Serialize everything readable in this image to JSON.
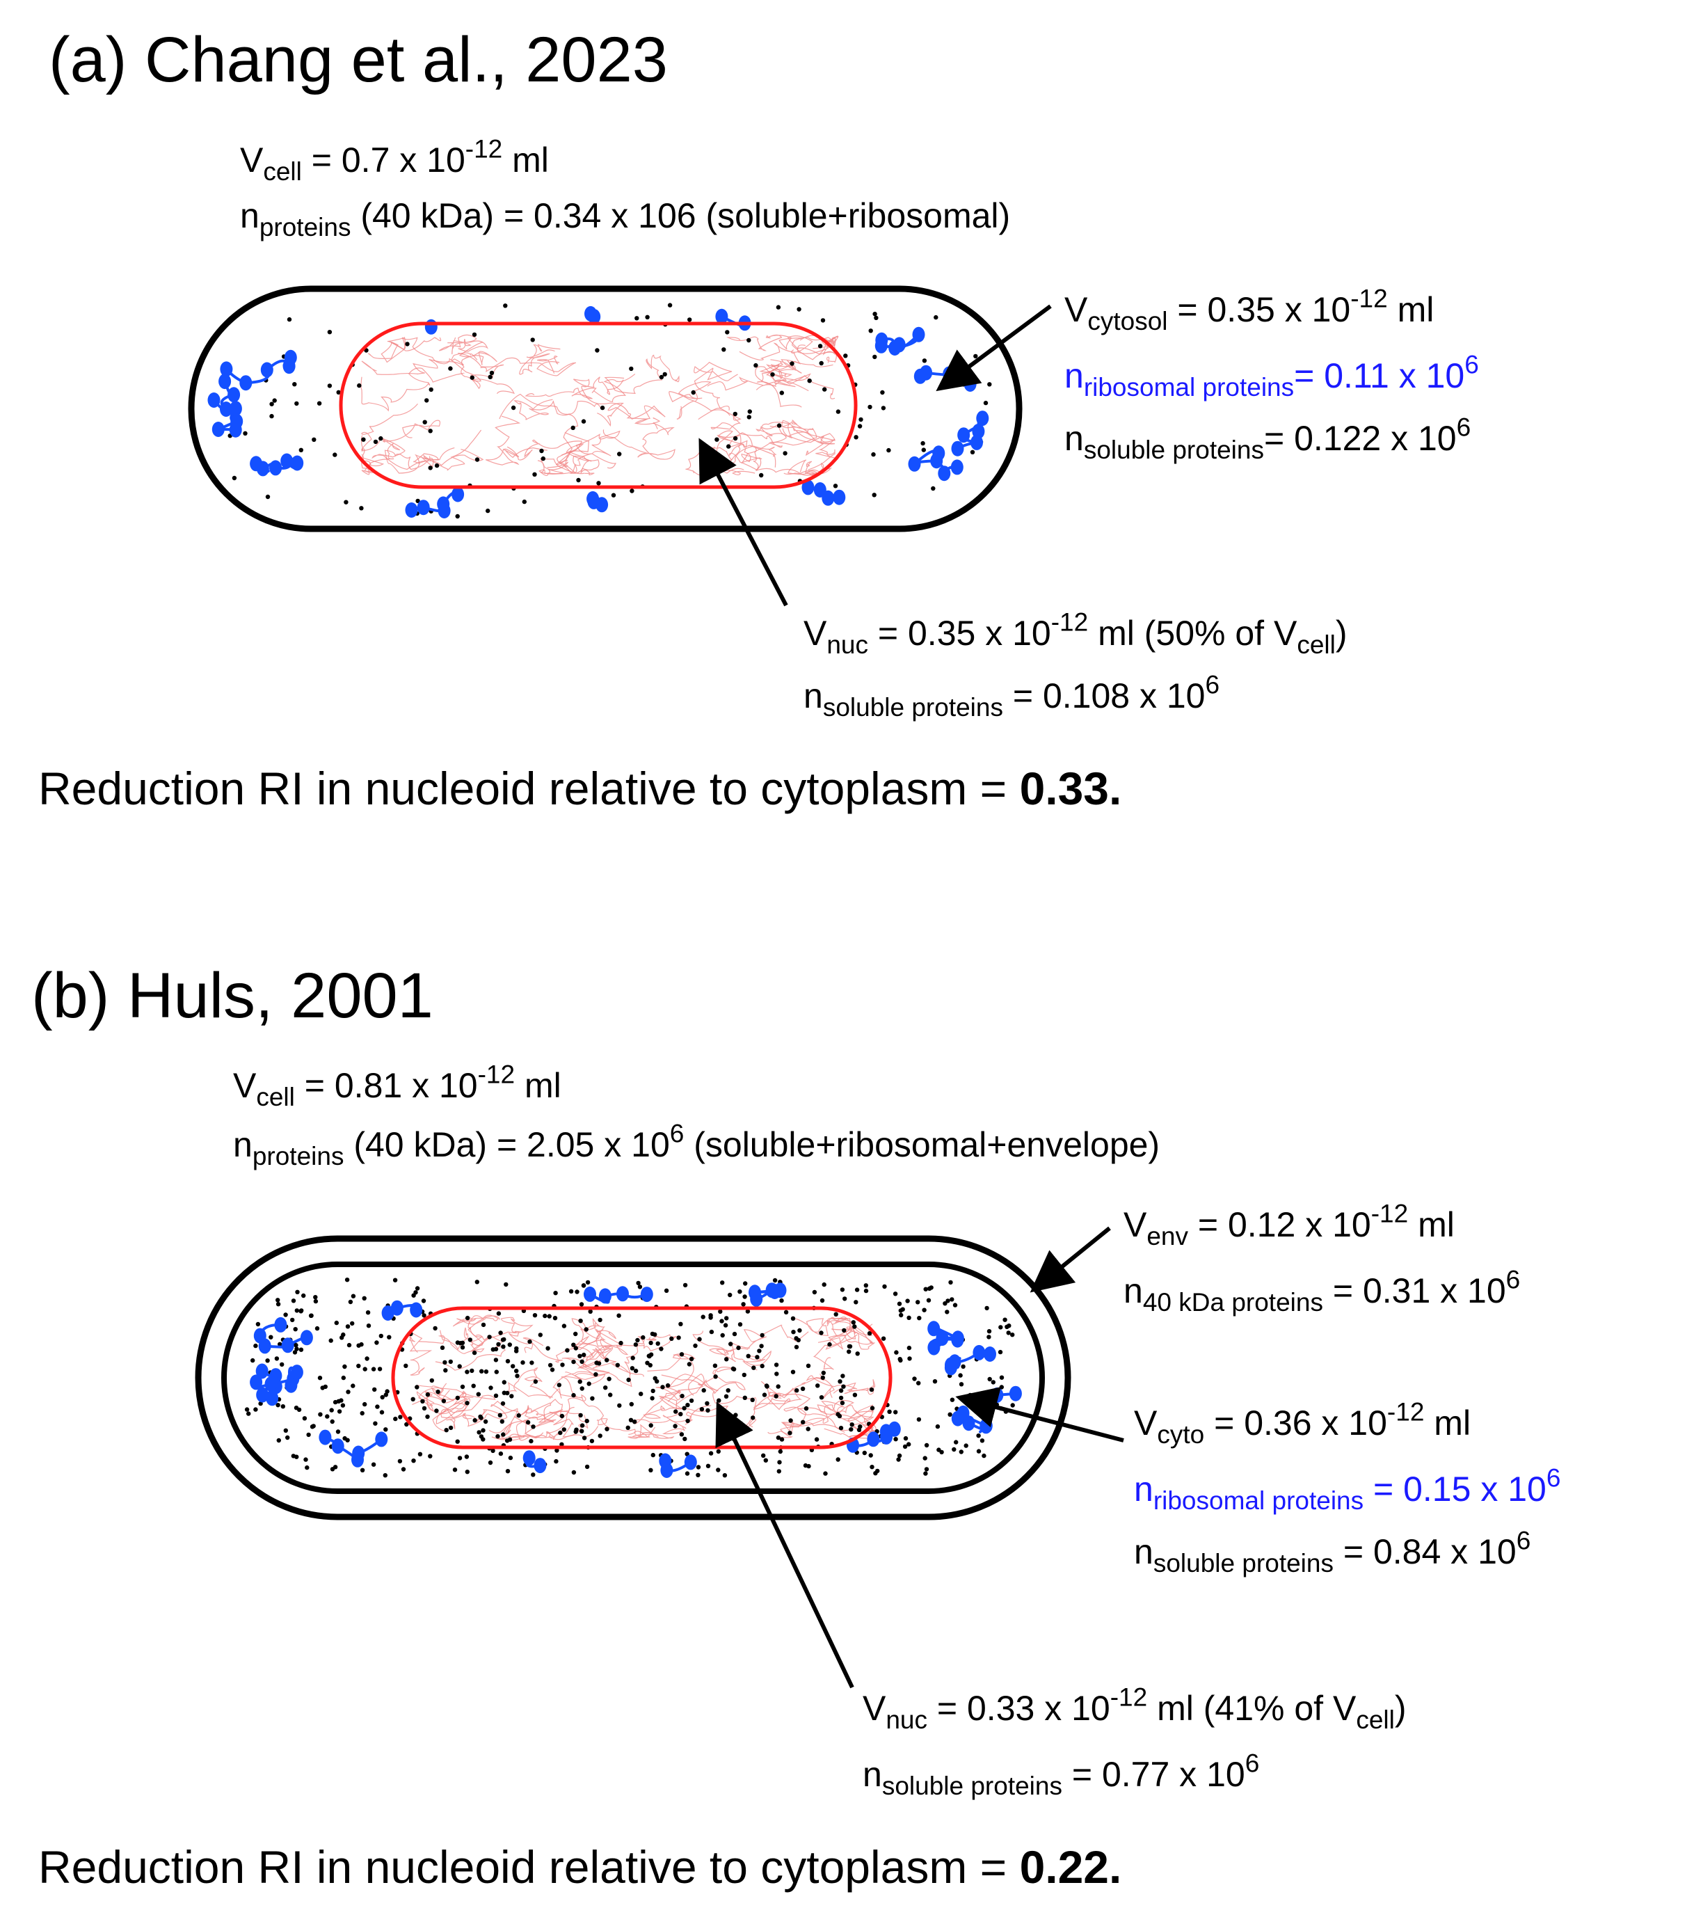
{
  "figure": {
    "colors": {
      "text": "#000000",
      "ribosomal_highlight": "#1a1aff",
      "ribosome_beads": "#1450ff",
      "nucleoid_outline": "#ff1a1a",
      "dna_strands": "#f08080",
      "cell_wall": "#000000"
    }
  },
  "panel_a": {
    "title": "(a) Chang et al., 2023",
    "cell": {
      "v_symbol": "V",
      "v_sub": "cell",
      "v_eq": " = 0.7 x 10",
      "v_exp": "-12",
      "v_unit": " ml",
      "n_symbol": "n",
      "n_sub": "proteins",
      "n_text": " (40 kDa) = 0.34 x 106 (soluble+ribosomal)"
    },
    "cytosol": {
      "v_symbol": "V",
      "v_sub": "cytosol",
      "v_eq": " = 0.35 x 10",
      "v_exp": "-12",
      "v_unit": " ml",
      "ribo_symbol": "n",
      "ribo_sub": "ribosomal proteins",
      "ribo_eq": "= 0.11 x 10",
      "ribo_exp": "6",
      "sol_symbol": "n",
      "sol_sub": "soluble proteins",
      "sol_eq": "= 0.122 x 10",
      "sol_exp": "6"
    },
    "nucleoid": {
      "v_symbol": "V",
      "v_sub": "nuc",
      "v_eq": " = 0.35 x 10",
      "v_exp": "-12",
      "v_unit": " ml (50% of V",
      "v_pct_sub": "cell",
      "v_close": ")",
      "sol_symbol": "n",
      "sol_sub": "soluble proteins",
      "sol_eq": " = 0.108 x 10",
      "sol_exp": "6"
    },
    "summary": {
      "text": "Reduction RI in nucleoid relative to cytoplasm = ",
      "value": "0.33."
    }
  },
  "panel_b": {
    "title": "(b) Huls, 2001",
    "cell": {
      "v_symbol": "V",
      "v_sub": "cell",
      "v_eq": " = 0.81 x 10",
      "v_exp": "-12",
      "v_unit": " ml",
      "n_symbol": "n",
      "n_sub": "proteins",
      "n_pre": " (40 kDa) = 2.05 x 10",
      "n_exp": "6",
      "n_post": " (soluble+ribosomal+envelope)"
    },
    "envelope": {
      "v_symbol": "V",
      "v_sub": "env",
      "v_eq": " = 0.12 x 10",
      "v_exp": "-12",
      "v_unit": " ml",
      "n_symbol": "n",
      "n_sub": "40 kDa proteins",
      "n_eq": " = 0.31 x 10",
      "n_exp": "6"
    },
    "cytoplasm": {
      "v_symbol": "V",
      "v_sub": "cyto",
      "v_eq": " = 0.36 x 10",
      "v_exp": "-12",
      "v_unit": " ml",
      "ribo_symbol": "n",
      "ribo_sub": "ribosomal proteins",
      "ribo_eq": " = 0.15 x 10",
      "ribo_exp": "6",
      "sol_symbol": "n",
      "sol_sub": "soluble proteins",
      "sol_eq": " = 0.84 x 10",
      "sol_exp": "6"
    },
    "nucleoid": {
      "v_symbol": "V",
      "v_sub": "nuc",
      "v_eq": " = 0.33 x 10",
      "v_exp": "-12",
      "v_unit": " ml (41% of V",
      "v_pct_sub": "cell",
      "v_close": ")",
      "sol_symbol": "n",
      "sol_sub": "soluble proteins",
      "sol_eq": " = 0.77 x 10",
      "sol_exp": "6"
    },
    "summary": {
      "text": "Reduction RI in nucleoid relative to cytoplasm = ",
      "value": "0.22."
    }
  }
}
